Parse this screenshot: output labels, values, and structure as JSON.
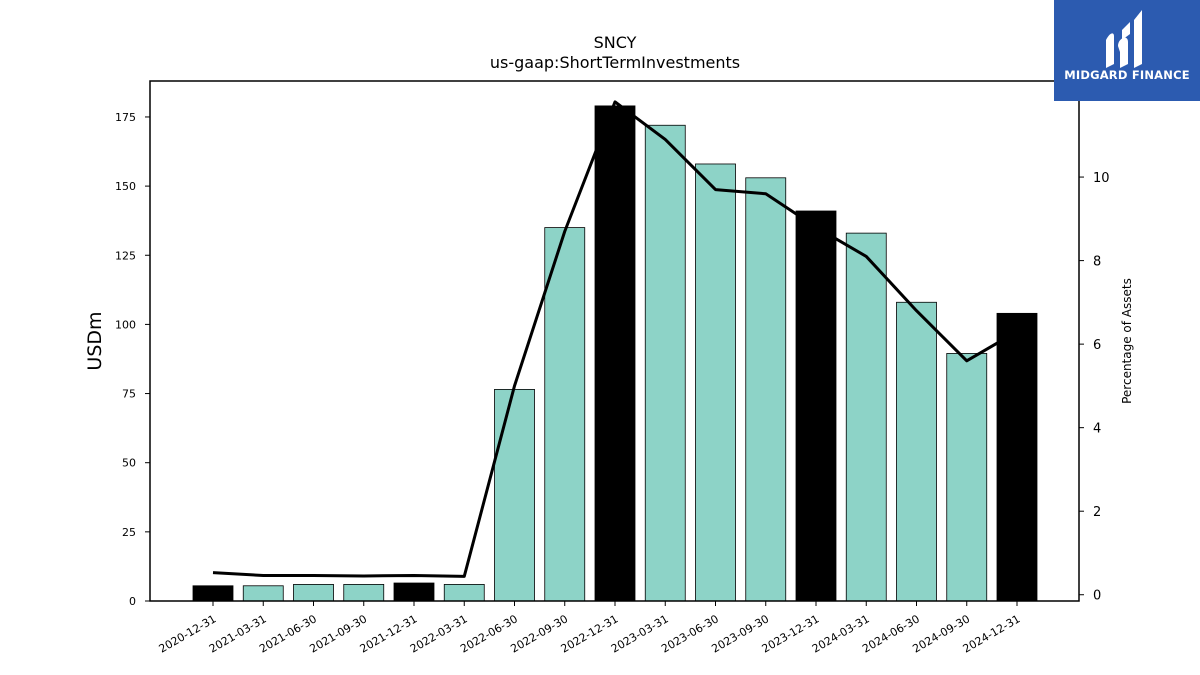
{
  "chart_data": {
    "type": "bar",
    "title": "SNCY",
    "subtitle": "us-gaap:ShortTermInvestments",
    "ylabel": "USDm",
    "y2label": "Percentage of Assets",
    "ylim": [
      0,
      188
    ],
    "y2lim": [
      -0.15,
      12.3
    ],
    "yticks": [
      0,
      25,
      50,
      75,
      100,
      125,
      150,
      175
    ],
    "y2ticks": [
      0,
      2,
      4,
      6,
      8,
      10
    ],
    "categories": [
      "2020-12-31",
      "2021-03-31",
      "2021-06-30",
      "2021-09-30",
      "2021-12-31",
      "2022-03-31",
      "2022-06-30",
      "2022-09-30",
      "2022-12-31",
      "2023-03-31",
      "2023-06-30",
      "2023-09-30",
      "2023-12-31",
      "2024-03-31",
      "2024-06-30",
      "2024-09-30",
      "2024-12-31"
    ],
    "series": [
      {
        "type": "bar",
        "axis": "left",
        "values": [
          5.5,
          5.5,
          6,
          6,
          6.5,
          6,
          76.5,
          135,
          179,
          172,
          158,
          153,
          141,
          133,
          108,
          89.5,
          104
        ],
        "colors": [
          "#000000",
          "#8dd3c7",
          "#8dd3c7",
          "#8dd3c7",
          "#000000",
          "#8dd3c7",
          "#8dd3c7",
          "#8dd3c7",
          "#000000",
          "#8dd3c7",
          "#8dd3c7",
          "#8dd3c7",
          "#000000",
          "#8dd3c7",
          "#8dd3c7",
          "#8dd3c7",
          "#000000"
        ]
      },
      {
        "type": "line",
        "axis": "right",
        "color": "#000000",
        "values": [
          0.53,
          0.46,
          0.46,
          0.45,
          0.46,
          0.44,
          5.0,
          8.7,
          11.8,
          10.9,
          9.7,
          9.6,
          8.8,
          8.1,
          6.8,
          5.6,
          6.3
        ]
      }
    ],
    "grid": false
  },
  "logo": {
    "text": "MIDGARD FINANCE",
    "bg": "#2c5bb0"
  }
}
